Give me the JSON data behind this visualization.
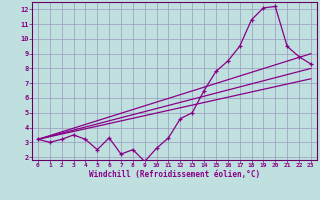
{
  "xlabel": "Windchill (Refroidissement éolien,°C)",
  "bg_color": "#c0e0e0",
  "grid_color": "#9999bb",
  "line_color": "#880088",
  "axis_color": "#660066",
  "xlim": [
    -0.5,
    23.5
  ],
  "ylim": [
    1.8,
    12.5
  ],
  "xticks": [
    0,
    1,
    2,
    3,
    4,
    5,
    6,
    7,
    8,
    9,
    10,
    11,
    12,
    13,
    14,
    15,
    16,
    17,
    18,
    19,
    20,
    21,
    22,
    23
  ],
  "yticks": [
    2,
    3,
    4,
    5,
    6,
    7,
    8,
    9,
    10,
    11,
    12
  ],
  "series1_x": [
    0,
    1,
    2,
    3,
    4,
    5,
    6,
    7,
    8,
    9,
    10,
    11,
    12,
    13,
    14,
    15,
    16,
    17,
    18,
    19,
    20,
    21,
    22,
    23
  ],
  "series1_y": [
    3.2,
    3.0,
    3.2,
    3.5,
    3.2,
    2.5,
    3.3,
    2.2,
    2.5,
    1.7,
    2.6,
    3.3,
    4.6,
    5.0,
    6.5,
    7.8,
    8.5,
    9.5,
    11.3,
    12.1,
    12.2,
    9.5,
    8.8,
    8.3
  ],
  "series2_x": [
    0,
    23
  ],
  "series2_y": [
    3.2,
    7.3
  ],
  "series3_x": [
    0,
    23
  ],
  "series3_y": [
    3.2,
    8.0
  ],
  "series4_x": [
    0,
    23
  ],
  "series4_y": [
    3.2,
    9.0
  ]
}
